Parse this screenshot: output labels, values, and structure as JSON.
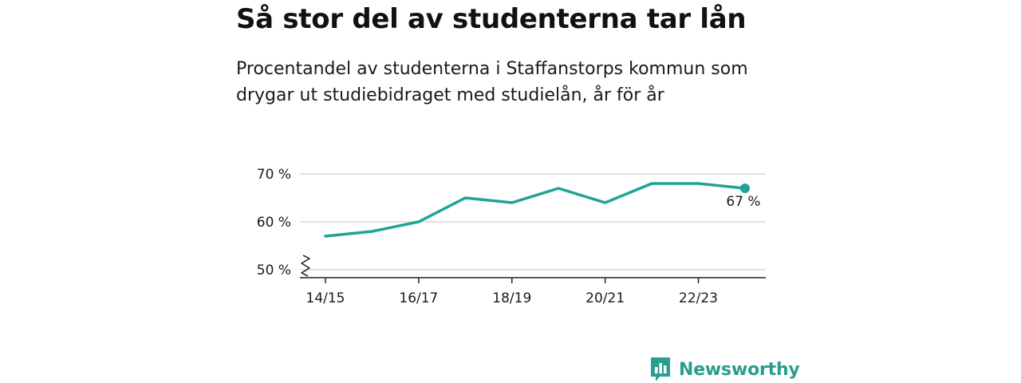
{
  "title": "Så stor del av studenterna tar lån",
  "subtitle": "Procentandel av studenterna i Staffanstorps kommun som drygar ut studiebidraget med studielån, år för år",
  "brand": {
    "name": "Newsworthy",
    "icon": "newsworthy-logo-icon",
    "color": "#2a9d8f"
  },
  "chart_data": {
    "type": "line",
    "x": [
      "14/15",
      "15/16",
      "16/17",
      "17/18",
      "18/19",
      "19/20",
      "20/21",
      "21/22",
      "22/23",
      "23/24"
    ],
    "xticks": [
      "14/15",
      "16/17",
      "18/19",
      "20/21",
      "22/23"
    ],
    "series": [
      {
        "values": [
          57,
          58,
          60,
          65,
          64,
          67,
          64,
          68,
          68,
          67
        ],
        "color": "#1fa396"
      }
    ],
    "ylim": [
      50,
      70
    ],
    "yticks": [
      {
        "value": 50,
        "label": "50 %"
      },
      {
        "value": 60,
        "label": "60 %"
      },
      {
        "value": 70,
        "label": "70 %"
      }
    ],
    "axis_break": true,
    "grid": true,
    "end_label": "67 %"
  }
}
